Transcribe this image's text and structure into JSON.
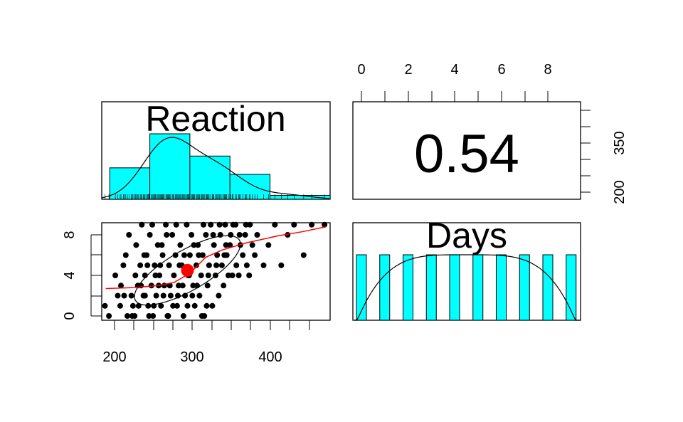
{
  "chart_data": [
    {
      "type": "bar",
      "panel": "Reaction histogram (diagonal)",
      "title": "Reaction",
      "bin_edges": [
        200,
        250,
        300,
        350,
        400,
        475
      ],
      "density_rel": [
        0.48,
        1.0,
        0.66,
        0.38,
        0.06
      ],
      "rug": true,
      "density_curve": true
    },
    {
      "type": "text",
      "panel": "correlation (upper)",
      "label": "0.54",
      "right_axis_ticks": [
        "200",
        "350"
      ]
    },
    {
      "type": "scatter",
      "panel": "Reaction vs Days (lower)",
      "x_ticks": [
        "200",
        "300",
        "400"
      ],
      "y_ticks": [
        "0",
        "4",
        "8"
      ],
      "xlim": [
        190,
        475
      ],
      "ylim": [
        -0.3,
        9.3
      ],
      "points": [
        [
          194,
          1
        ],
        [
          199,
          0
        ],
        [
          207,
          4
        ],
        [
          210,
          2
        ],
        [
          214,
          3
        ],
        [
          217,
          5
        ],
        [
          220,
          6
        ],
        [
          224,
          8
        ],
        [
          227,
          2
        ],
        [
          229,
          1
        ],
        [
          231,
          0
        ],
        [
          233,
          7
        ],
        [
          235,
          3
        ],
        [
          238,
          5
        ],
        [
          240,
          9
        ],
        [
          242,
          2
        ],
        [
          244,
          4
        ],
        [
          246,
          6
        ],
        [
          248,
          1
        ],
        [
          250,
          8
        ],
        [
          252,
          3
        ],
        [
          254,
          0
        ],
        [
          256,
          5
        ],
        [
          258,
          2
        ],
        [
          260,
          7
        ],
        [
          262,
          4
        ],
        [
          264,
          1
        ],
        [
          266,
          6
        ],
        [
          268,
          3
        ],
        [
          270,
          9
        ],
        [
          272,
          0
        ],
        [
          274,
          5
        ],
        [
          276,
          2
        ],
        [
          278,
          8
        ],
        [
          280,
          4
        ],
        [
          282,
          6
        ],
        [
          284,
          1
        ],
        [
          286,
          3
        ],
        [
          288,
          7
        ],
        [
          290,
          5
        ],
        [
          292,
          0
        ],
        [
          294,
          2
        ],
        [
          296,
          9
        ],
        [
          298,
          4
        ],
        [
          300,
          6
        ],
        [
          302,
          8
        ],
        [
          304,
          3
        ],
        [
          306,
          1
        ],
        [
          308,
          5
        ],
        [
          310,
          7
        ],
        [
          312,
          2
        ],
        [
          314,
          4
        ],
        [
          316,
          6
        ],
        [
          318,
          0
        ],
        [
          320,
          8
        ],
        [
          322,
          3
        ],
        [
          324,
          5
        ],
        [
          326,
          9
        ],
        [
          328,
          1
        ],
        [
          330,
          7
        ],
        [
          332,
          4
        ],
        [
          334,
          6
        ],
        [
          336,
          2
        ],
        [
          338,
          8
        ],
        [
          340,
          5
        ],
        [
          342,
          3
        ],
        [
          344,
          9
        ],
        [
          346,
          6
        ],
        [
          348,
          4
        ],
        [
          350,
          7
        ],
        [
          354,
          9
        ],
        [
          358,
          5
        ],
        [
          362,
          8
        ],
        [
          366,
          6
        ],
        [
          370,
          9
        ],
        [
          374,
          4
        ],
        [
          378,
          7
        ],
        [
          384,
          8
        ],
        [
          392,
          5
        ],
        [
          398,
          7
        ],
        [
          406,
          9
        ],
        [
          414,
          5
        ],
        [
          422,
          8
        ],
        [
          430,
          9
        ],
        [
          442,
          6
        ],
        [
          452,
          9
        ],
        [
          468,
          9
        ],
        [
          228,
          0
        ],
        [
          236,
          1
        ],
        [
          244,
          2
        ],
        [
          249,
          0
        ],
        [
          255,
          1
        ],
        [
          261,
          3
        ],
        [
          267,
          2
        ],
        [
          273,
          0
        ],
        [
          279,
          1
        ],
        [
          285,
          2
        ],
        [
          291,
          3
        ],
        [
          297,
          1
        ],
        [
          303,
          2
        ],
        [
          309,
          3
        ],
        [
          315,
          0
        ],
        [
          321,
          1
        ],
        [
          243,
          6
        ],
        [
          253,
          9
        ],
        [
          263,
          5
        ],
        [
          271,
          8
        ],
        [
          283,
          9
        ],
        [
          293,
          6
        ],
        [
          305,
          7
        ],
        [
          317,
          9
        ],
        [
          329,
          8
        ],
        [
          337,
          9
        ],
        [
          345,
          7
        ],
        [
          351,
          8
        ],
        [
          357,
          9
        ],
        [
          363,
          7
        ],
        [
          369,
          8
        ],
        [
          375,
          9
        ],
        [
          381,
          6
        ],
        [
          213,
          1
        ],
        [
          218,
          2
        ],
        [
          222,
          0
        ],
        [
          232,
          4
        ],
        [
          239,
          3
        ],
        [
          247,
          5
        ],
        [
          257,
          4
        ],
        [
          265,
          7
        ],
        [
          275,
          3
        ],
        [
          287,
          5
        ],
        [
          299,
          4
        ],
        [
          311,
          6
        ],
        [
          323,
          4
        ],
        [
          333,
          5
        ],
        [
          343,
          6
        ],
        [
          353,
          4
        ],
        [
          361,
          4
        ],
        [
          371,
          5
        ]
      ],
      "mean_point": [
        297,
        4.5
      ],
      "loess_curve": [
        [
          195,
          2.7
        ],
        [
          230,
          2.8
        ],
        [
          260,
          3.0
        ],
        [
          280,
          3.3
        ],
        [
          300,
          4.2
        ],
        [
          320,
          5.8
        ],
        [
          340,
          6.5
        ],
        [
          370,
          7.2
        ],
        [
          410,
          7.9
        ],
        [
          440,
          8.3
        ],
        [
          470,
          8.8
        ]
      ],
      "ellipse": {
        "center": [
          297,
          4.5
        ],
        "rx_data": 75,
        "ry_data": 3.6,
        "tilt_deg": 30
      }
    },
    {
      "type": "bar",
      "panel": "Days histogram (diagonal)",
      "title": "Days",
      "categories": [
        "0",
        "1",
        "2",
        "3",
        "4",
        "5",
        "6",
        "7",
        "8",
        "9"
      ],
      "values": [
        18,
        18,
        18,
        18,
        18,
        18,
        18,
        18,
        18,
        18
      ],
      "top_axis_ticks": [
        "0",
        "2",
        "4",
        "6",
        "8"
      ],
      "density_curve": true
    }
  ],
  "colors": {
    "bar_fill": "#00ffff",
    "stroke": "#000000",
    "smooth": "#ff0000"
  }
}
